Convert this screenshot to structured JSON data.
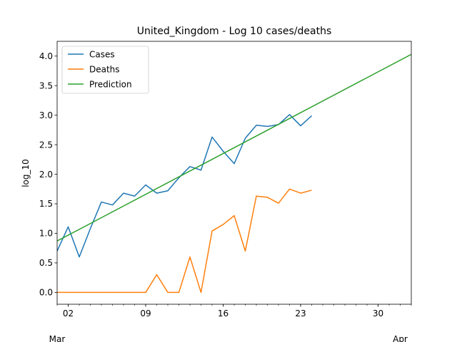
{
  "chart_data": {
    "type": "line",
    "title": "United_Kingdom - Log 10 cases/deaths",
    "ylabel": "log_10",
    "xlabel": "",
    "x_start": "2020-03-01",
    "x_end": "2020-04-02",
    "ylim": [
      -0.2,
      4.25
    ],
    "yticks": [
      0.0,
      0.5,
      1.0,
      1.5,
      2.0,
      2.5,
      3.0,
      3.5,
      4.0
    ],
    "ytick_labels": [
      "0.0",
      "0.5",
      "1.0",
      "1.5",
      "2.0",
      "2.5",
      "3.0",
      "3.5",
      "4.0"
    ],
    "major_xticks": [
      {
        "date": "2020-03-02",
        "label": "02"
      },
      {
        "date": "2020-03-09",
        "label": "09"
      },
      {
        "date": "2020-03-16",
        "label": "16"
      },
      {
        "date": "2020-03-23",
        "label": "23"
      },
      {
        "date": "2020-03-30",
        "label": "30"
      }
    ],
    "month_labels": [
      {
        "date": "2020-03-01",
        "label": "Mar"
      },
      {
        "date": "2020-04-01",
        "label": "Apr"
      }
    ],
    "legend_position": "top-left",
    "grid": false,
    "series": [
      {
        "name": "Cases",
        "color": "#1f77b4",
        "x": [
          "2020-03-01",
          "2020-03-02",
          "2020-03-03",
          "2020-03-04",
          "2020-03-05",
          "2020-03-06",
          "2020-03-07",
          "2020-03-08",
          "2020-03-09",
          "2020-03-10",
          "2020-03-11",
          "2020-03-12",
          "2020-03-13",
          "2020-03-14",
          "2020-03-15",
          "2020-03-16",
          "2020-03-17",
          "2020-03-18",
          "2020-03-19",
          "2020-03-20",
          "2020-03-21",
          "2020-03-22",
          "2020-03-23",
          "2020-03-24"
        ],
        "y": [
          0.7,
          1.11,
          0.6,
          1.08,
          1.53,
          1.48,
          1.68,
          1.63,
          1.82,
          1.68,
          1.72,
          1.94,
          2.13,
          2.07,
          2.63,
          2.39,
          2.18,
          2.61,
          2.83,
          2.81,
          2.84,
          3.01,
          2.82,
          2.99
        ]
      },
      {
        "name": "Deaths",
        "color": "#ff7f0e",
        "x": [
          "2020-03-01",
          "2020-03-02",
          "2020-03-03",
          "2020-03-04",
          "2020-03-05",
          "2020-03-06",
          "2020-03-07",
          "2020-03-08",
          "2020-03-09",
          "2020-03-10",
          "2020-03-11",
          "2020-03-12",
          "2020-03-13",
          "2020-03-14",
          "2020-03-15",
          "2020-03-16",
          "2020-03-17",
          "2020-03-18",
          "2020-03-19",
          "2020-03-20",
          "2020-03-21",
          "2020-03-22",
          "2020-03-23",
          "2020-03-24"
        ],
        "y": [
          0.0,
          0.0,
          0.0,
          0.0,
          0.0,
          0.0,
          0.0,
          0.0,
          0.0,
          0.3,
          0.0,
          0.0,
          0.6,
          0.0,
          1.04,
          1.15,
          1.3,
          0.7,
          1.63,
          1.61,
          1.51,
          1.75,
          1.68,
          1.73
        ]
      },
      {
        "name": "Prediction",
        "color": "#2ca02c",
        "x": [
          "2020-03-01",
          "2020-04-02"
        ],
        "y": [
          0.87,
          4.03
        ]
      }
    ]
  }
}
